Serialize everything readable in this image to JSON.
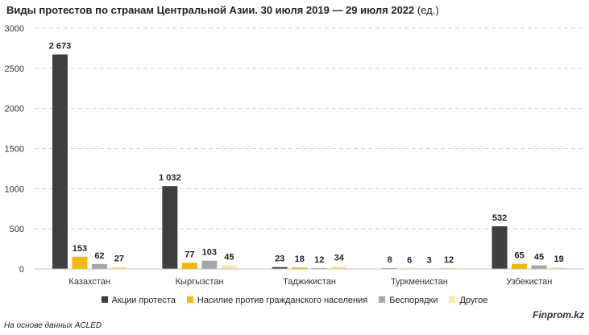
{
  "title": {
    "main": "Виды протестов по странам Центральной Азии. 30 июля 2019 — 29 июля 2022",
    "unit": "(ед.)"
  },
  "chart_data": {
    "type": "bar",
    "title": "Виды протестов по странам Центральной Азии. 30 июля 2019 — 29 июля 2022 (ед.)",
    "xlabel": "",
    "ylabel": "",
    "categories": [
      "Казахстан",
      "Кыргызстан",
      "Таджикистан",
      "Туркменистан",
      "Узбекистан"
    ],
    "series": [
      {
        "name": "Акции протеста",
        "color": "#3f3f3f",
        "values": [
          2673,
          1032,
          23,
          8,
          532
        ],
        "labels": [
          "2 673",
          "1 032",
          "23",
          "8",
          "532"
        ]
      },
      {
        "name": "Насилие против гражданского населения",
        "color": "#f5b800",
        "values": [
          153,
          77,
          18,
          6,
          65
        ],
        "labels": [
          "153",
          "77",
          "18",
          "6",
          "65"
        ]
      },
      {
        "name": "Беспорядки",
        "color": "#a6a6a6",
        "values": [
          62,
          103,
          12,
          3,
          45
        ],
        "labels": [
          "62",
          "103",
          "12",
          "3",
          "45"
        ]
      },
      {
        "name": "Другое",
        "color": "#fbe9a8",
        "values": [
          27,
          45,
          34,
          12,
          19
        ],
        "labels": [
          "27",
          "45",
          "34",
          "12",
          "19"
        ]
      }
    ],
    "ylim": [
      0,
      3000
    ],
    "yticks": [
      0,
      500,
      1000,
      1500,
      2000,
      2500,
      3000
    ],
    "grid": true,
    "legend_position": "bottom"
  },
  "source_note": "На основе данных ACLED",
  "brand": "Finprom.kz"
}
